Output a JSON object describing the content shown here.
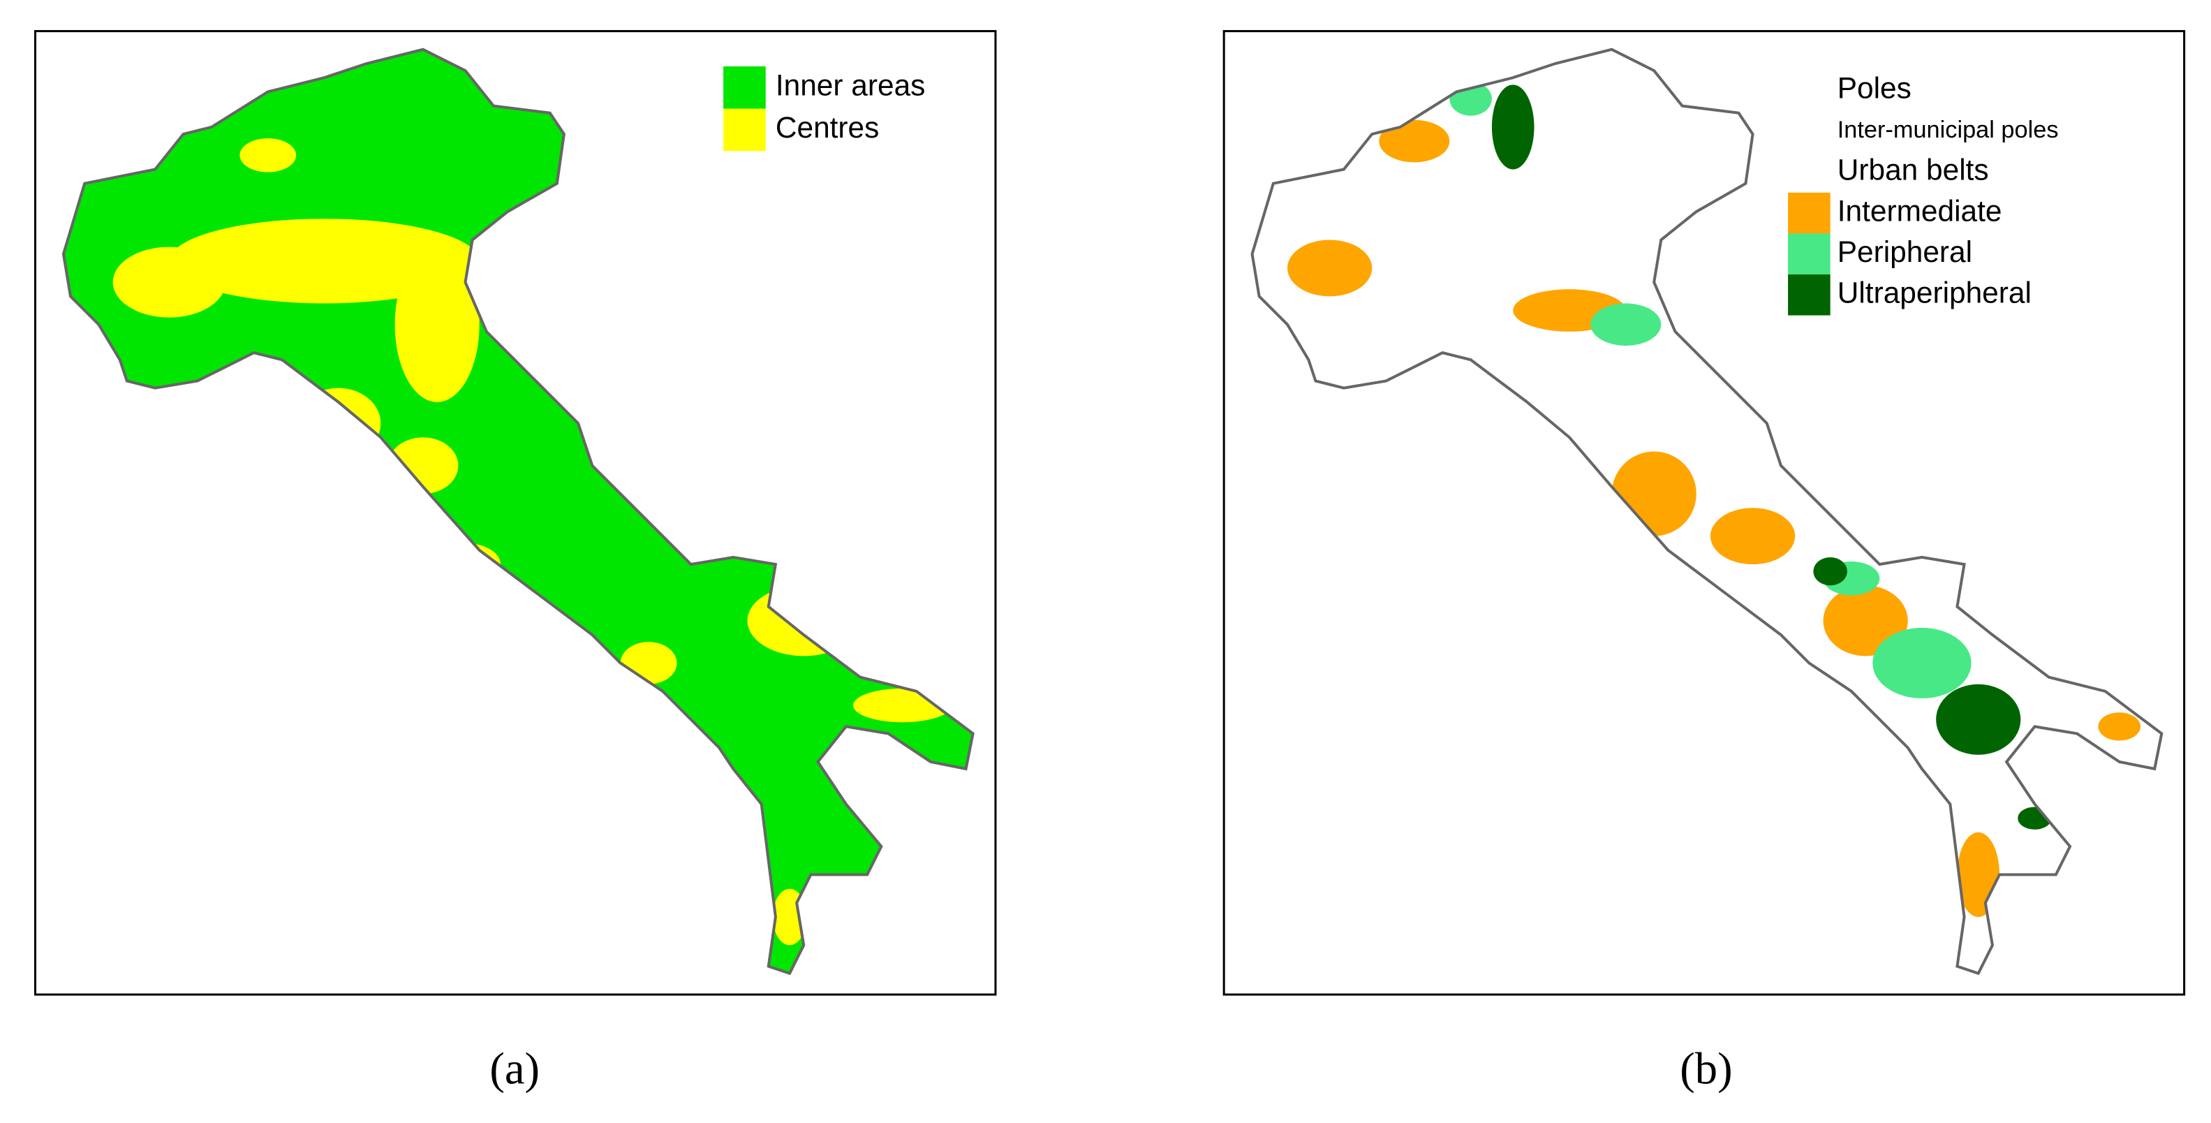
{
  "panels": [
    {
      "caption": "(a)",
      "legend": [
        {
          "label": "Inner areas",
          "color": "#00e600"
        },
        {
          "label": "Centres",
          "color": "#ffff00"
        }
      ]
    },
    {
      "caption": "(b)",
      "legend": [
        {
          "label": "Poles"
        },
        {
          "label": "Inter-municipal poles",
          "small": true
        },
        {
          "label": "Urban belts"
        },
        {
          "label": "Intermediate",
          "color": "#ffa500"
        },
        {
          "label": "Peripheral",
          "color": "#48e887"
        },
        {
          "label": "Ultraperipheral",
          "color": "#006400"
        }
      ]
    }
  ]
}
